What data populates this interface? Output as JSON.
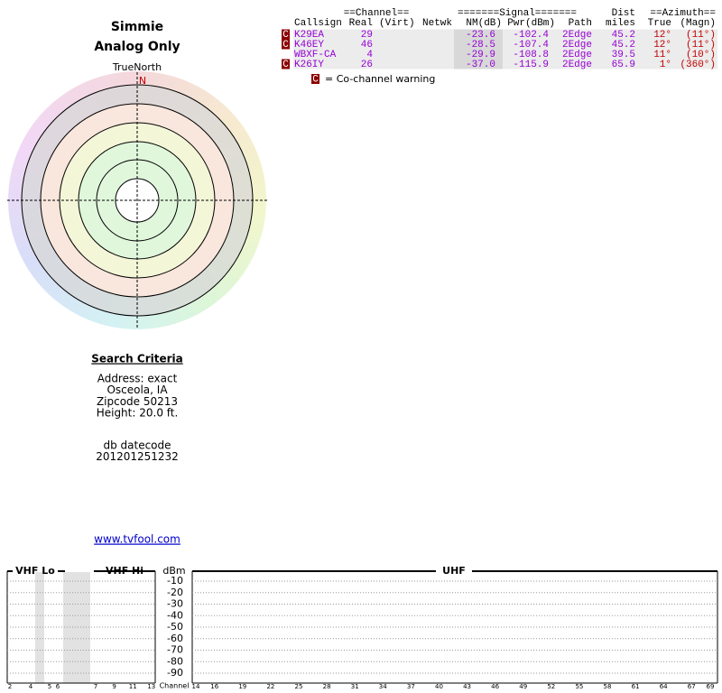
{
  "header": {
    "title": "Simmie",
    "subtitle": "Analog Only"
  },
  "compass": {
    "label": "TrueNorth",
    "north": "N"
  },
  "stations": {
    "group_headers": {
      "channel": "==Channel==",
      "signal": "=======Signal=======",
      "dist": "Dist",
      "azimuth": "==Azimuth=="
    },
    "columns": [
      "Callsign",
      "Real",
      "(Virt)",
      "Netwk",
      "NM(dB)",
      "Pwr(dBm)",
      "Path",
      "miles",
      "True",
      "(Magn)"
    ],
    "rows": [
      {
        "flag": "C",
        "callsign": "K29EA",
        "real": "29",
        "nm": "-23.6",
        "pwr": "-102.4",
        "path": "2Edge",
        "dist": "45.2",
        "true": "12°",
        "magn": "(11°)"
      },
      {
        "flag": "C",
        "callsign": "K46EY",
        "real": "46",
        "nm": "-28.5",
        "pwr": "-107.4",
        "path": "2Edge",
        "dist": "45.2",
        "true": "12°",
        "magn": "(11°)"
      },
      {
        "callsign": "WBXF-CA",
        "real": "4",
        "nm": "-29.9",
        "pwr": "-108.8",
        "path": "2Edge",
        "dist": "39.5",
        "true": "11°",
        "magn": "(10°)"
      },
      {
        "flag": "C",
        "callsign": "K26IY",
        "real": "26",
        "nm": "-37.0",
        "pwr": "-115.9",
        "path": "2Edge",
        "dist": "65.9",
        "true": "1°",
        "magn": "(360°)"
      }
    ]
  },
  "legend": {
    "flag": "C",
    "text": "= Co-channel warning"
  },
  "criteria": {
    "title": "Search Criteria",
    "lines": [
      "Address: exact",
      "Osceola, IA",
      "Zipcode 50213",
      "Height: 20.0 ft."
    ],
    "db": [
      "db datecode",
      "201201251232"
    ]
  },
  "link": "www.tvfool.com",
  "spectrum": {
    "bands": {
      "vhf_lo": "VHF Lo",
      "vhf_hi": "VHF Hi",
      "uhf": "UHF"
    },
    "unit": "dBm",
    "yticks": [
      -10,
      -20,
      -30,
      -40,
      -50,
      -60,
      -70,
      -80,
      -90
    ],
    "channel_label": "Channel",
    "channels": {
      "vhf_lo": [
        2,
        4,
        5,
        6
      ],
      "vhf_hi": [
        7,
        9,
        11,
        13
      ],
      "uhf": [
        14,
        16,
        19,
        22,
        25,
        28,
        31,
        34,
        37,
        40,
        43,
        46,
        49,
        52,
        55,
        58,
        61,
        64,
        67,
        69
      ]
    }
  }
}
